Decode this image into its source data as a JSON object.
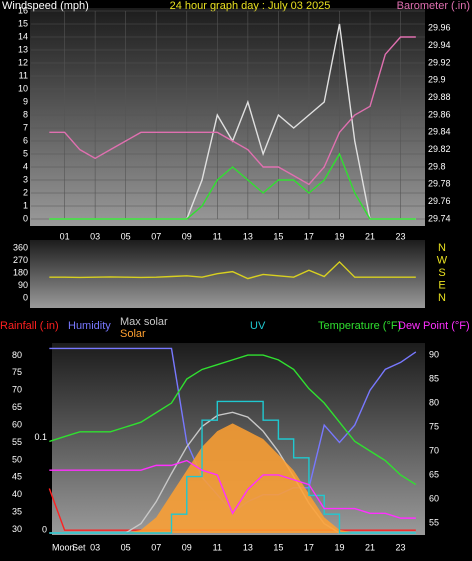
{
  "chart_data": [
    {
      "type": "line",
      "title": "24 hour graph day : July 03 2025",
      "ylabel": "Windspeed (mph)",
      "y2label": "Barometer (.in)",
      "x": [
        0,
        1,
        2,
        3,
        4,
        5,
        6,
        7,
        8,
        9,
        10,
        11,
        12,
        13,
        14,
        15,
        16,
        17,
        18,
        19,
        20,
        21,
        22,
        23,
        24
      ],
      "xlim": [
        -1.2,
        24.6
      ],
      "xticks": [
        {
          "value": 1,
          "label": "01"
        },
        {
          "value": 3,
          "label": "03"
        },
        {
          "value": 5,
          "label": "05"
        },
        {
          "value": 7,
          "label": "07"
        },
        {
          "value": 9,
          "label": "09"
        },
        11,
        13,
        15,
        17,
        19,
        21,
        23
      ],
      "ylim": [
        0,
        16
      ],
      "yticks": [
        0,
        1,
        2,
        3,
        4,
        5,
        6,
        7,
        8,
        9,
        10,
        11,
        12,
        13,
        14,
        15,
        16
      ],
      "y2lim": [
        29.74,
        29.98
      ],
      "y2ticks": [
        29.74,
        29.76,
        29.78,
        29.8,
        29.82,
        29.84,
        29.86,
        29.88,
        29.9,
        29.92,
        29.94,
        29.96
      ],
      "grid": true,
      "series": [
        {
          "color": "#e0e0e0",
          "values": [
            0,
            0,
            0,
            0,
            0,
            0,
            0,
            0,
            0,
            0,
            3,
            8,
            6,
            9,
            5,
            8,
            7,
            8,
            9,
            15,
            6,
            0,
            0,
            0,
            0
          ]
        },
        {
          "color": "#30e030",
          "values": [
            0,
            0,
            0,
            0,
            0,
            0,
            0,
            0,
            0,
            0,
            1,
            3,
            4,
            3,
            2,
            3,
            3,
            2,
            3,
            5,
            2,
            0,
            0,
            0,
            0
          ]
        },
        {
          "color": "#e070b0",
          "axis": "y2",
          "values": [
            29.84,
            29.84,
            29.82,
            29.81,
            29.82,
            29.83,
            29.84,
            29.84,
            29.84,
            29.84,
            29.84,
            29.84,
            29.83,
            29.82,
            29.8,
            29.8,
            29.79,
            29.78,
            29.8,
            29.84,
            29.86,
            29.87,
            29.93,
            29.95,
            29.95
          ]
        }
      ]
    },
    {
      "type": "line",
      "x": [
        0,
        1,
        2,
        3,
        4,
        5,
        6,
        7,
        8,
        9,
        10,
        11,
        12,
        13,
        14,
        15,
        16,
        17,
        18,
        19,
        20,
        21,
        22,
        23,
        24
      ],
      "xlim": [
        -1.2,
        24.6
      ],
      "ylim": [
        -43,
        389
      ],
      "yticks": [
        0,
        90,
        180,
        270,
        360
      ],
      "y2lim": [
        -43,
        389
      ],
      "y2ticks": [
        {
          "value": 360,
          "label": "N"
        },
        {
          "value": 270,
          "label": "W"
        },
        {
          "value": 180,
          "label": "S"
        },
        {
          "value": 90,
          "label": "E"
        },
        {
          "value": 0,
          "label": "N"
        }
      ],
      "series": [
        {
          "color": "#d8d020",
          "values": [
            150,
            150,
            148,
            150,
            152,
            150,
            148,
            150,
            155,
            160,
            150,
            175,
            190,
            140,
            170,
            160,
            150,
            200,
            155,
            260,
            150,
            150,
            150,
            150,
            150
          ]
        }
      ]
    },
    {
      "type": "line",
      "x": [
        0,
        1,
        2,
        3,
        4,
        5,
        6,
        7,
        8,
        9,
        10,
        11,
        12,
        13,
        14,
        15,
        16,
        17,
        18,
        19,
        20,
        21,
        22,
        23,
        24
      ],
      "xlim": [
        -1.2,
        24.6
      ],
      "xticks": [
        {
          "value": 3,
          "label": "03"
        },
        {
          "value": 5,
          "label": "05"
        },
        {
          "value": 7,
          "label": "07"
        },
        {
          "value": 9,
          "label": "09"
        },
        11,
        13,
        15,
        17,
        19,
        21,
        23
      ],
      "annotations": [
        "Moon",
        "Set"
      ],
      "ylim": [
        29,
        83
      ],
      "yticks": [
        30,
        35,
        40,
        45,
        50,
        55,
        60,
        65,
        70,
        75,
        80
      ],
      "y2lim": [
        52.9,
        92.1
      ],
      "y2ticks": [
        55,
        60,
        65,
        70,
        75,
        80,
        85,
        90
      ],
      "y3lim": [
        -0.003,
        0.2
      ],
      "y3ticks": [
        0,
        0.1
      ],
      "y4lim": [
        0,
        1200
      ],
      "y5lim": [
        0,
        10
      ],
      "series": [
        {
          "name": "Rainfall (.in)",
          "color": "#ff2020",
          "axis": "y3",
          "values": [
            0.045,
            0,
            0,
            0,
            0,
            0,
            0,
            0,
            0,
            0,
            0,
            0,
            0,
            0,
            0,
            0,
            0,
            0,
            0,
            0,
            0,
            0,
            0,
            0,
            0
          ]
        },
        {
          "name": "Humidity",
          "color": "#7878ff",
          "values": [
            82,
            82,
            82,
            82,
            82,
            82,
            82,
            82,
            82,
            55,
            45,
            40,
            35,
            38,
            40,
            40,
            42,
            42,
            60,
            55,
            60,
            70,
            76,
            78,
            81
          ]
        },
        {
          "name": "Max solar",
          "color": "#c8c8c8",
          "axis": "y4",
          "values": [
            0,
            0,
            0,
            0,
            0,
            0,
            60,
            200,
            380,
            550,
            680,
            750,
            770,
            740,
            650,
            520,
            360,
            190,
            60,
            0,
            0,
            0,
            0,
            0,
            0
          ]
        },
        {
          "name": "Solar",
          "color": "#ffa030",
          "axis": "y4",
          "style": "area",
          "values": [
            0,
            0,
            0,
            0,
            0,
            0,
            20,
            100,
            250,
            400,
            550,
            650,
            700,
            650,
            600,
            500,
            400,
            250,
            100,
            20,
            0,
            0,
            0,
            0,
            0
          ]
        },
        {
          "name": "UV",
          "color": "#20c8d0",
          "axis": "y5",
          "style": "step",
          "values": [
            0,
            0,
            0,
            0,
            0,
            0,
            0,
            0,
            1,
            3,
            6,
            7,
            7,
            7,
            6,
            5,
            4,
            2,
            1,
            0,
            0,
            0,
            0,
            0,
            0
          ]
        },
        {
          "name": "Temperature (°F)",
          "color": "#30e030",
          "axis": "y2",
          "values": [
            72,
            73,
            74,
            74,
            74,
            75,
            76,
            78,
            80,
            85,
            87,
            88,
            89,
            90,
            90,
            89,
            87,
            83,
            80,
            76,
            72,
            70,
            68,
            65,
            63
          ]
        },
        {
          "name": "Dew Point (°F)",
          "color": "#ff30ff",
          "axis": "y2",
          "values": [
            66,
            66,
            66,
            66,
            66,
            66,
            66,
            67,
            67,
            68,
            66,
            65,
            57,
            62,
            65,
            65,
            64,
            63,
            58,
            58,
            58,
            57,
            57,
            56,
            56
          ]
        }
      ]
    }
  ]
}
